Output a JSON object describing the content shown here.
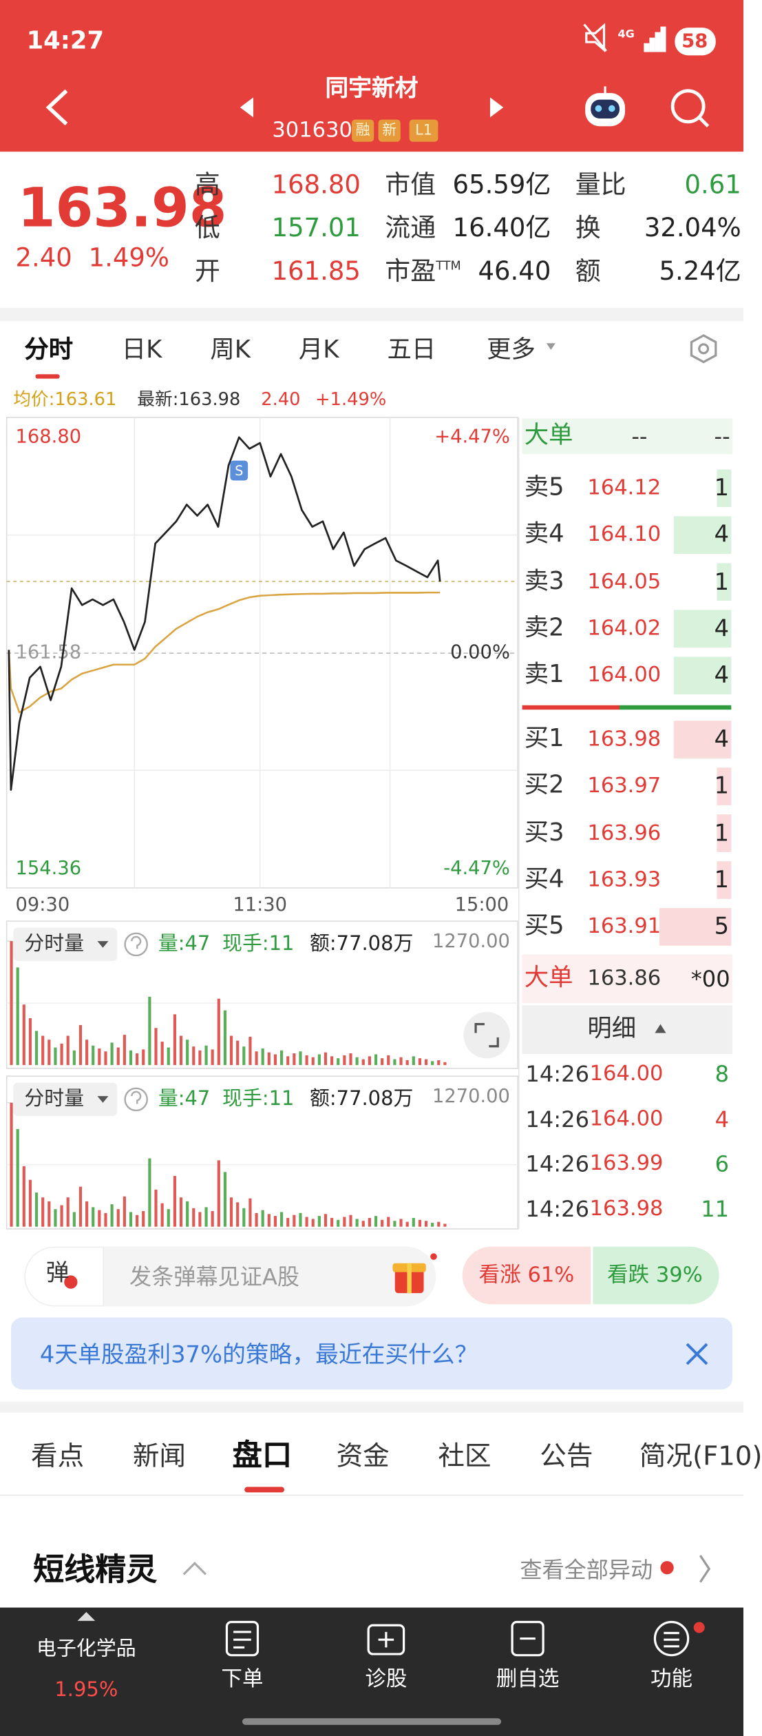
{
  "status_bar": {
    "time": "14:27",
    "network": "4G",
    "battery": "58"
  },
  "header": {
    "title": "同宇新材",
    "code": "301630",
    "tags": [
      "融",
      "新",
      "L1"
    ]
  },
  "quote": {
    "price": "163.98",
    "change": "2.40",
    "change_pct": "1.49%",
    "stats": [
      [
        {
          "label": "高",
          "value": "168.80"
        },
        {
          "label": "市值",
          "value": "65.59亿"
        },
        {
          "label": "量比",
          "value": "0.61"
        }
      ],
      [
        {
          "label": "低",
          "value": "157.01"
        },
        {
          "label": "流通",
          "value": "16.40亿"
        },
        {
          "label": "换",
          "value": "32.04%"
        }
      ],
      [
        {
          "label": "开",
          "value": "161.85"
        },
        {
          "label": "市盈",
          "label_sup": "TTM",
          "value": "46.40"
        },
        {
          "label": "额",
          "value": "5.24亿"
        }
      ]
    ]
  },
  "chart_tabs": [
    "分时",
    "日K",
    "周K",
    "月K",
    "五日",
    "更多"
  ],
  "chart_info": {
    "avg": "均价:163.61",
    "latest": "最新:163.98",
    "change": "2.40",
    "change_pct": "+1.49%"
  },
  "chart_data": [
    {
      "type": "line",
      "x": [
        "09:30",
        "09:31",
        "09:35",
        "09:40",
        "09:45",
        "09:50",
        "09:55",
        "10:00",
        "10:05",
        "10:10",
        "10:15",
        "10:20",
        "10:25",
        "10:30",
        "10:35",
        "10:40",
        "10:45",
        "10:50",
        "10:55",
        "11:00",
        "11:05",
        "11:10",
        "11:15",
        "11:20",
        "11:25",
        "11:30",
        "13:05",
        "13:10",
        "13:15",
        "13:20",
        "13:25",
        "13:30",
        "13:35",
        "13:40",
        "13:45",
        "13:50",
        "13:55",
        "14:00",
        "14:05",
        "14:10",
        "14:15",
        "14:20",
        "14:25",
        "14:26"
      ],
      "xlim": [
        "09:30",
        "15:00"
      ],
      "xticks": [
        "09:30",
        "11:30",
        "15:00"
      ],
      "ylim": [
        154.36,
        168.8
      ],
      "yticks": [
        {
          "value": 168.8,
          "label": "168.80"
        },
        {
          "value": 161.58,
          "label": "161.58"
        },
        {
          "value": 154.36,
          "label": "154.36"
        }
      ],
      "y2lim": [
        -4.47,
        4.47
      ],
      "y2ticks": [
        {
          "value": 4.47,
          "label": "+4.47%"
        },
        {
          "value": 0,
          "label": "0.00%"
        },
        {
          "value": -4.47,
          "label": "-4.47%"
        }
      ],
      "series": [
        {
          "color": "#222222",
          "values": [
            161.69,
            157.01,
            159.26,
            160.76,
            161.13,
            160.01,
            161.13,
            163.75,
            163.19,
            163.38,
            163.19,
            163.38,
            162.63,
            161.69,
            162.63,
            165.25,
            165.62,
            165.99,
            166.55,
            166.18,
            166.55,
            165.81,
            167.86,
            168.8,
            168.42,
            168.61,
            167.49,
            168.24,
            167.49,
            166.37,
            165.81,
            165.99,
            165.06,
            165.62,
            164.5,
            165.06,
            165.25,
            165.43,
            164.68,
            164.5,
            164.31,
            164.12,
            164.68,
            163.98
          ]
        },
        {
          "color": "#d9a441",
          "values": [
            161.69,
            160.4,
            159.6,
            159.8,
            160.1,
            160.3,
            160.4,
            160.7,
            160.9,
            161.0,
            161.1,
            161.2,
            161.2,
            161.2,
            161.4,
            161.8,
            162.1,
            162.4,
            162.6,
            162.8,
            162.95,
            163.05,
            163.2,
            163.35,
            163.45,
            163.5,
            163.52,
            163.54,
            163.55,
            163.56,
            163.57,
            163.57,
            163.58,
            163.58,
            163.59,
            163.59,
            163.59,
            163.6,
            163.6,
            163.6,
            163.6,
            163.61,
            163.61,
            163.61
          ]
        }
      ],
      "reference_line": 163.98,
      "marker": {
        "x": "11:20",
        "label": "S"
      },
      "grid": true
    },
    {
      "type": "bar",
      "title": "分时量",
      "annotations": [
        "量:47",
        "现手:11",
        "额:77.08万"
      ],
      "values": [
        1270,
        1000,
        620,
        480,
        350,
        300,
        260,
        180,
        220,
        300,
        150,
        410,
        260,
        200,
        170,
        140,
        230,
        180,
        310,
        150,
        120,
        160,
        700,
        380,
        240,
        180,
        520,
        300,
        260,
        190,
        150,
        200,
        160,
        680,
        560,
        300,
        250,
        190,
        290,
        140,
        170,
        130,
        110,
        150,
        90,
        120,
        140,
        100,
        80,
        110,
        130,
        90,
        70,
        100,
        120,
        80,
        60,
        90,
        110,
        70,
        100,
        60,
        80,
        50,
        90,
        70,
        60,
        40,
        50,
        30
      ],
      "bar_colors": [
        "#e05a55",
        "#5aae5a"
      ],
      "ylim": [
        0,
        1270
      ],
      "yticks": [
        {
          "value": 1270,
          "label": "1270.00"
        }
      ]
    }
  ],
  "order_book": {
    "big_order": {
      "label": "大单",
      "values": [
        "--",
        "--"
      ]
    },
    "asks": [
      {
        "label": "卖5",
        "price": "164.12",
        "volume": 1
      },
      {
        "label": "卖4",
        "price": "164.10",
        "volume": 4
      },
      {
        "label": "卖3",
        "price": "164.05",
        "volume": 1
      },
      {
        "label": "卖2",
        "price": "164.02",
        "volume": 4
      },
      {
        "label": "卖1",
        "price": "164.00",
        "volume": 4
      }
    ],
    "bids": [
      {
        "label": "买1",
        "price": "163.98",
        "volume": 4
      },
      {
        "label": "买2",
        "price": "163.97",
        "volume": 1
      },
      {
        "label": "买3",
        "price": "163.96",
        "volume": 1
      },
      {
        "label": "买4",
        "price": "163.93",
        "volume": 1
      },
      {
        "label": "买5",
        "price": "163.91",
        "volume": 5
      }
    ],
    "big_trade": {
      "label": "大单",
      "price": "163.86",
      "volume": "*00"
    },
    "detail": "明细",
    "trades": [
      {
        "time": "14:26",
        "price": "164.00",
        "volume": 8,
        "color": "#2e9b3e"
      },
      {
        "time": "14:26",
        "price": "164.00",
        "volume": 4,
        "color": "#e23b36"
      },
      {
        "time": "14:26",
        "price": "163.99",
        "volume": 6,
        "color": "#2e9b3e"
      },
      {
        "time": "14:26",
        "price": "163.98",
        "volume": 11,
        "color": "#2e9b3e"
      }
    ]
  },
  "danmu": {
    "badge": "弹",
    "placeholder": "发条弹幕见证A股",
    "bullish": "看涨 61%",
    "bearish": "看跌 39%"
  },
  "banner": {
    "text": "4天单股盈利37%的策略，最近在买什么？"
  },
  "tabs": {
    "items": [
      "看点",
      "新闻",
      "盘口",
      "资金",
      "社区",
      "公告",
      "简况(F10)"
    ],
    "active": 2
  },
  "section": {
    "title": "短线精灵",
    "link": "查看全部异动"
  },
  "bottom_nav": {
    "sector": {
      "name": "电子化学品",
      "change": "1.95%"
    },
    "items": [
      "下单",
      "诊股",
      "删自选",
      "功能"
    ]
  }
}
